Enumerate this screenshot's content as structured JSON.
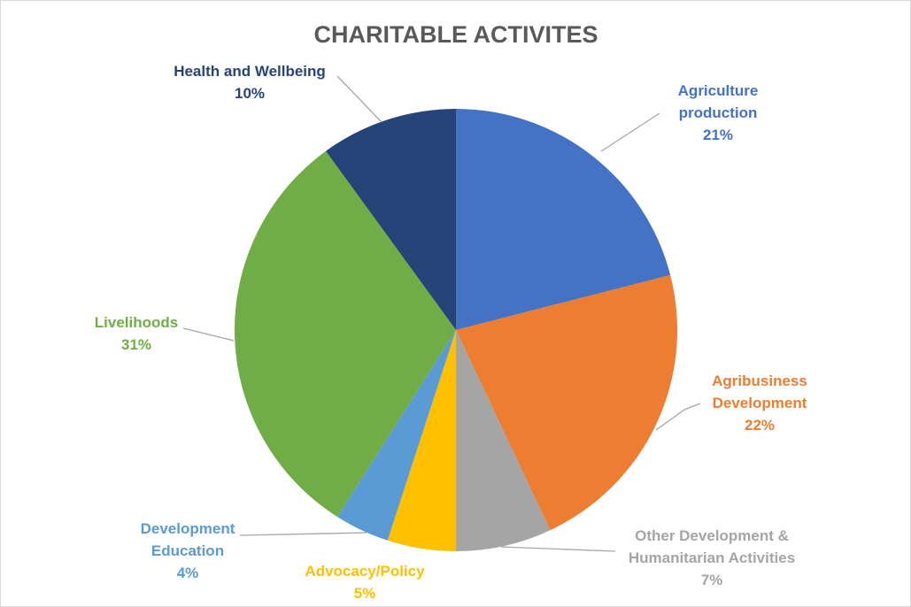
{
  "chart_data": {
    "type": "pie",
    "title": "CHARITABLE ACTIVITES",
    "slices": [
      {
        "name": "Agriculture production",
        "label_lines": [
          "Agriculture",
          "production"
        ],
        "value": 21,
        "pct_label": "21%",
        "color": "#4472C4",
        "label_color": "#4472C4"
      },
      {
        "name": "Agribusiness Development",
        "label_lines": [
          "Agribusiness",
          "Development"
        ],
        "value": 22,
        "pct_label": "22%",
        "color": "#ED7D31",
        "label_color": "#ED7D31"
      },
      {
        "name": "Other Development & Humanitarian Activities",
        "label_lines": [
          "Other Development &",
          "Humanitarian Activities"
        ],
        "value": 7,
        "pct_label": "7%",
        "color": "#A5A5A5",
        "label_color": "#A5A5A5"
      },
      {
        "name": "Advocacy/Policy",
        "label_lines": [
          "Advocacy/Policy"
        ],
        "value": 5,
        "pct_label": "5%",
        "color": "#FFC000",
        "label_color": "#FFC000"
      },
      {
        "name": "Development Education",
        "label_lines": [
          "Development",
          "Education"
        ],
        "value": 4,
        "pct_label": "4%",
        "color": "#5B9BD5",
        "label_color": "#5B9BD5"
      },
      {
        "name": "Livelihoods",
        "label_lines": [
          "Livelihoods"
        ],
        "value": 31,
        "pct_label": "31%",
        "color": "#70AD47",
        "label_color": "#70AD47"
      },
      {
        "name": "Health and Wellbeing",
        "label_lines": [
          "Health and Wellbeing"
        ],
        "value": 10,
        "pct_label": "10%",
        "color": "#264478",
        "label_color": "#264478"
      }
    ],
    "start_angle_deg": 0,
    "direction": "clockwise",
    "legend": "none"
  }
}
